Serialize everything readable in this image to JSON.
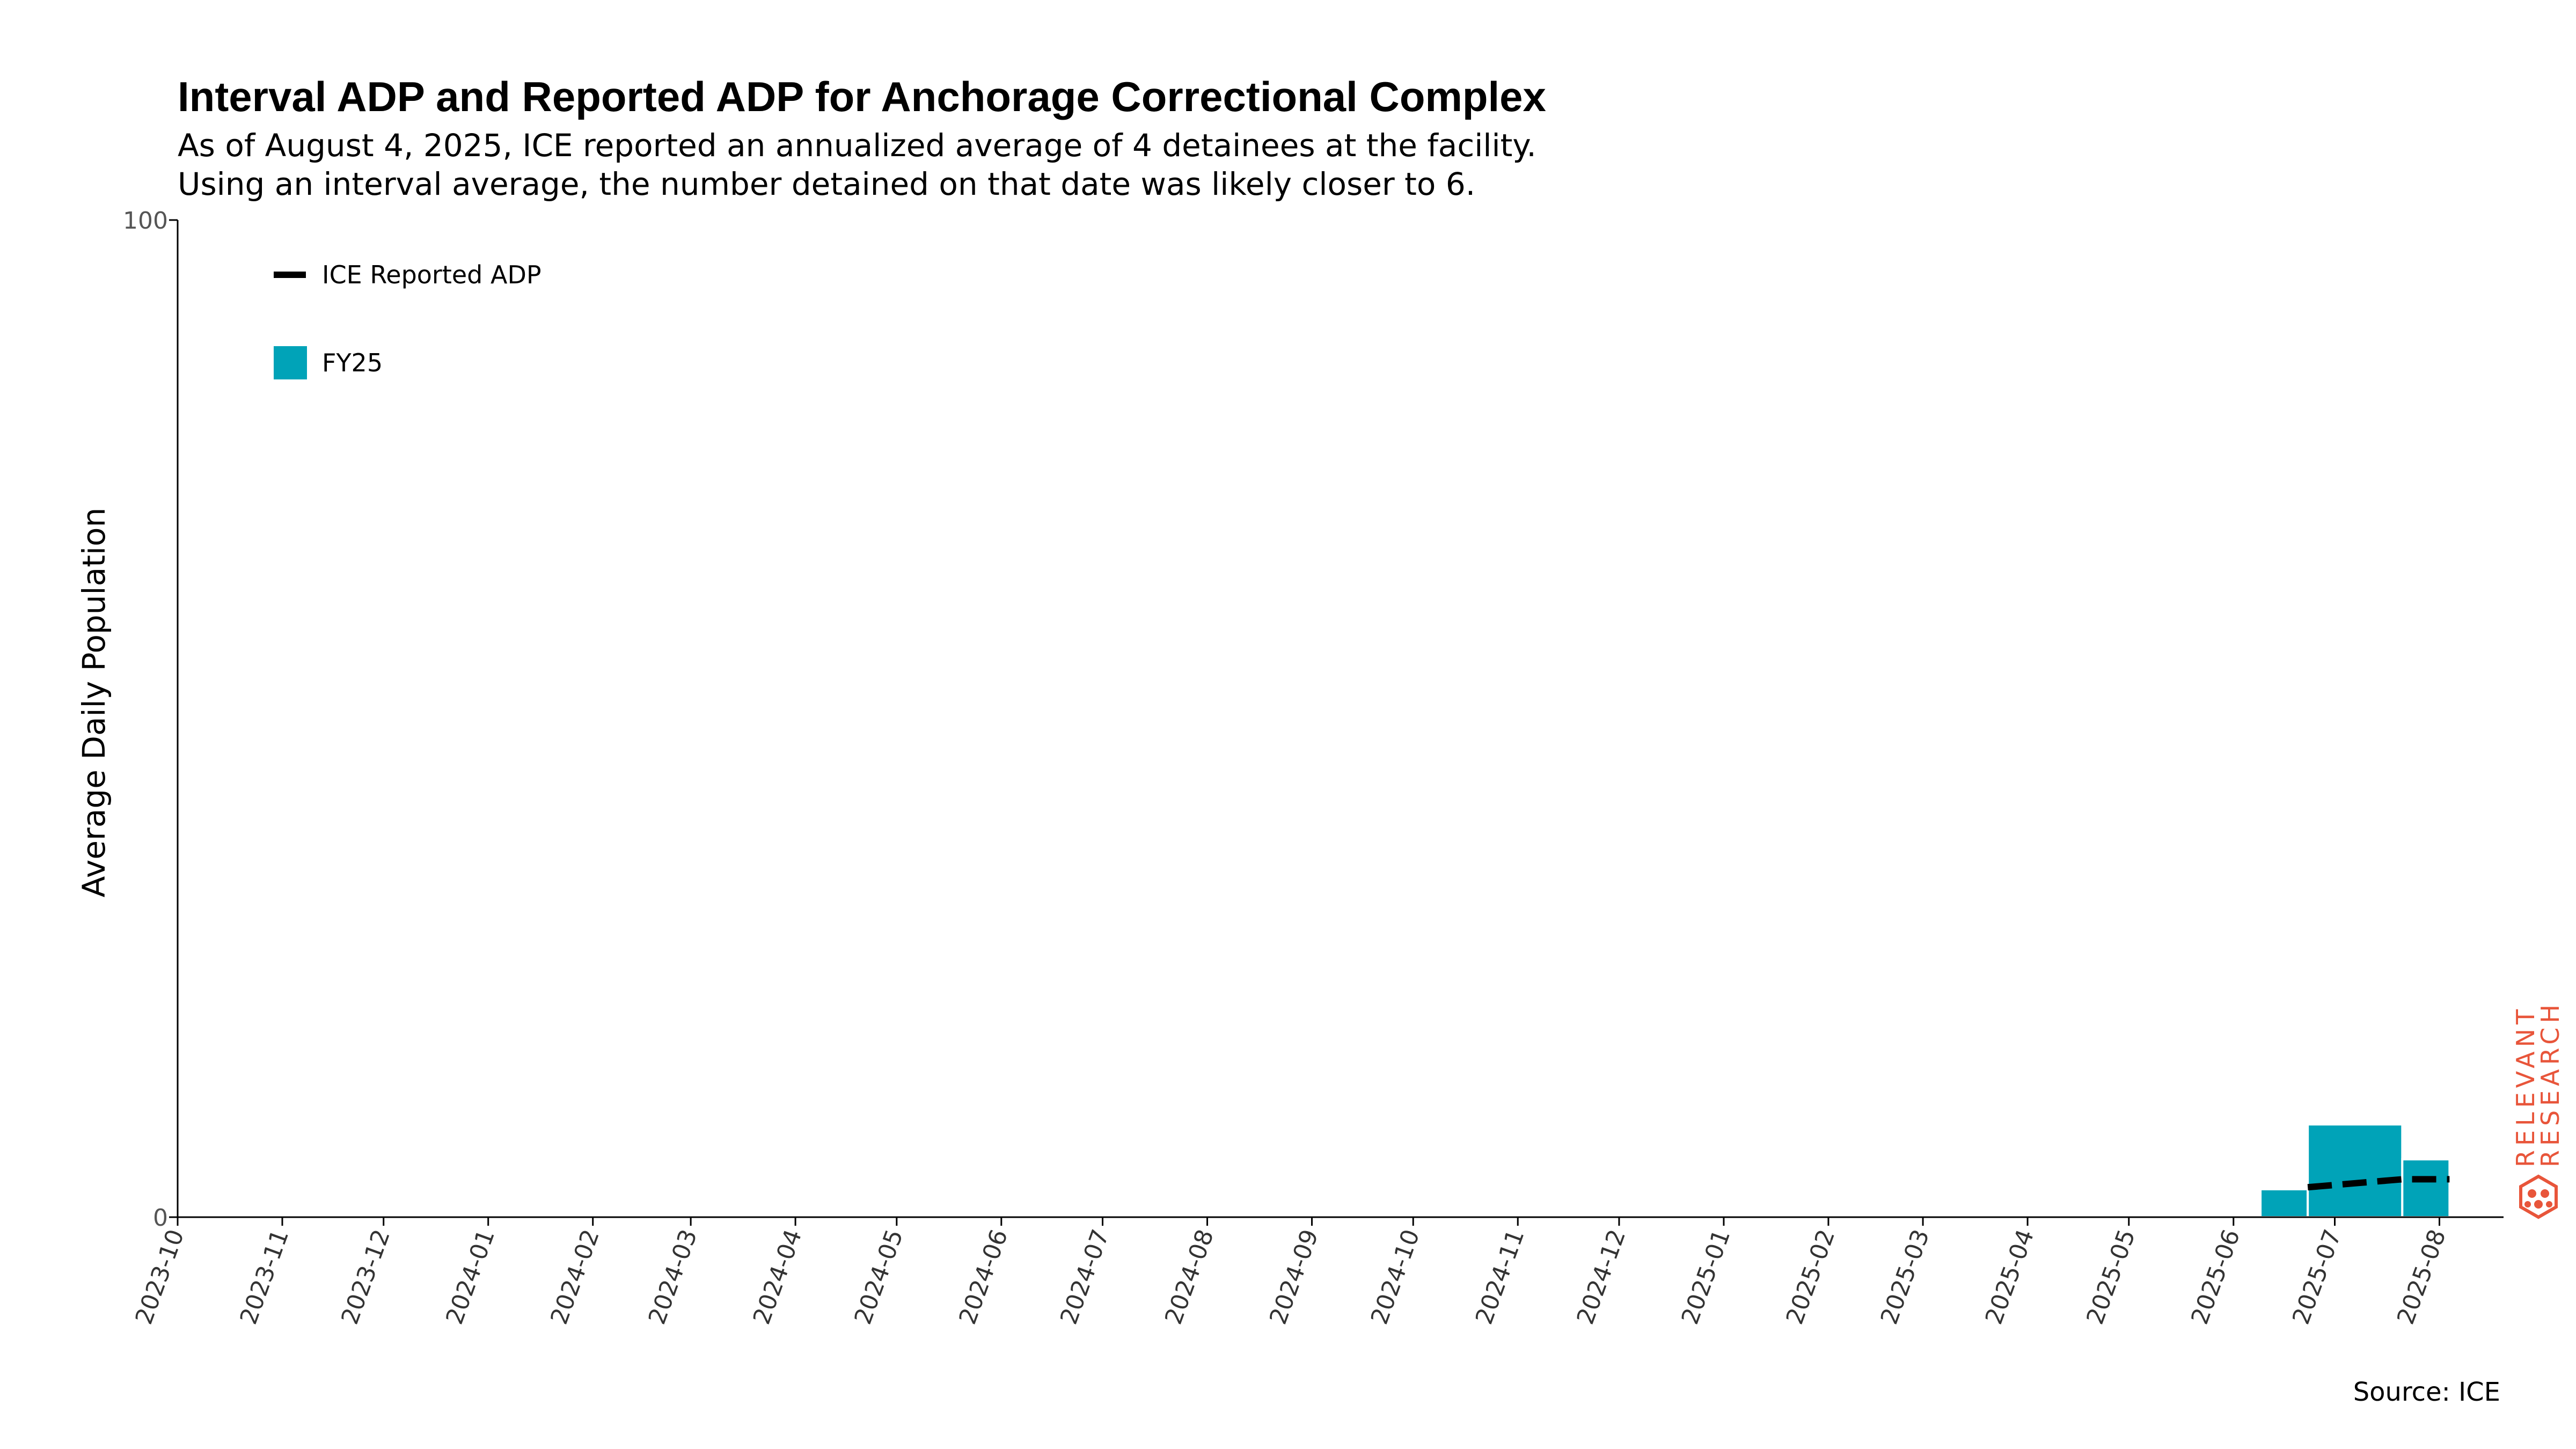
{
  "chart_data": {
    "type": "bar",
    "title": "Interval ADP and Reported ADP for Anchorage Correctional Complex",
    "subtitle": [
      "As of August 4, 2025, ICE reported an annualized average of 4 detainees at the facility.",
      "Using an interval average, the number detained on that date was likely closer to 6."
    ],
    "ylabel": "Average Daily Population",
    "ylim": [
      0,
      100
    ],
    "yticks": [
      "0",
      "100"
    ],
    "xlim": [
      "2023-10-01",
      "2025-08-20"
    ],
    "xticks": [
      "2023-10",
      "2023-11",
      "2023-12",
      "2024-01",
      "2024-02",
      "2024-03",
      "2024-04",
      "2024-05",
      "2024-06",
      "2024-07",
      "2024-08",
      "2024-09",
      "2024-10",
      "2024-11",
      "2024-12",
      "2025-01",
      "2025-02",
      "2025-03",
      "2025-04",
      "2025-05",
      "2025-06",
      "2025-07",
      "2025-08"
    ],
    "series": [
      {
        "name": "FY25",
        "kind": "interval-bar",
        "color": "#00a3b8",
        "intervals": [
          {
            "start": "2025-06-09",
            "end": "2025-06-23",
            "value": 2.8
          },
          {
            "start": "2025-06-23",
            "end": "2025-07-21",
            "value": 9.3
          },
          {
            "start": "2025-07-21",
            "end": "2025-08-04",
            "value": 5.8
          }
        ]
      },
      {
        "name": "ICE Reported ADP",
        "kind": "line",
        "style": "dashed",
        "color": "#000000",
        "x": [
          "2025-06-23",
          "2025-07-07",
          "2025-07-21",
          "2025-08-04"
        ],
        "y": [
          3.0,
          3.4,
          3.8,
          3.8
        ]
      }
    ],
    "legend": {
      "position": "top-left"
    },
    "grid": false
  },
  "source": "Source: ICE",
  "watermark": {
    "line1": "RELEVANT",
    "line2": "RESEARCH",
    "color": "#e8553a"
  }
}
